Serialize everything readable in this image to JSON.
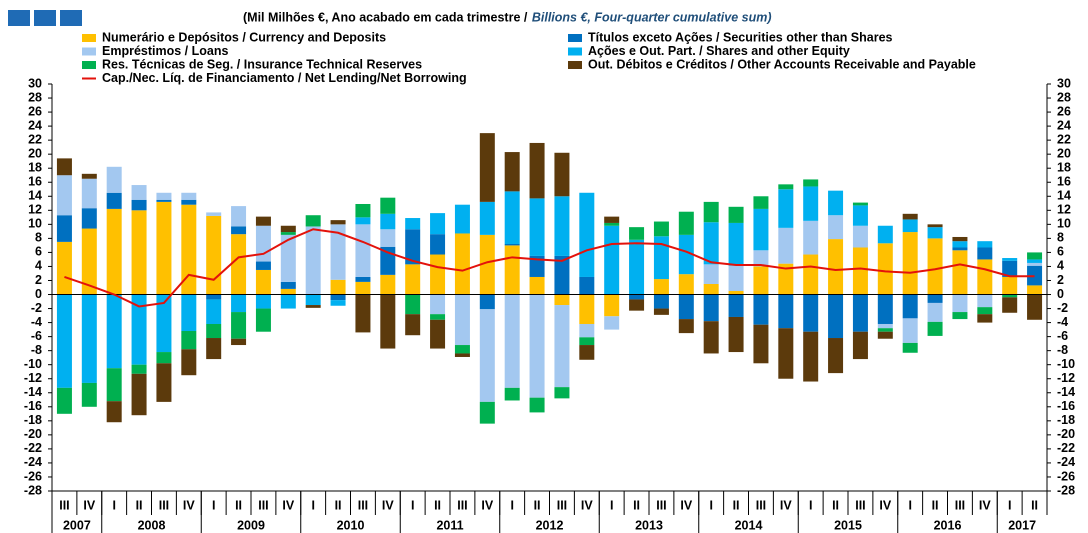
{
  "chart_data": {
    "type": "stacked-bar-line",
    "title": "(Mil Milhões €, Ano acabado em cada trimestre  /",
    "subtitle": "Billions  €, Four-quarter cumulative sum)",
    "categories": [
      "III",
      "IV",
      "I",
      "II",
      "III",
      "IV",
      "I",
      "II",
      "III",
      "IV",
      "I",
      "II",
      "III",
      "IV",
      "I",
      "II",
      "III",
      "IV",
      "I",
      "II",
      "III",
      "IV",
      "I",
      "II",
      "III",
      "IV",
      "I",
      "II",
      "III",
      "IV",
      "I",
      "II",
      "III",
      "IV",
      "I",
      "II",
      "III",
      "IV",
      "I",
      "II"
    ],
    "year_labels": [
      "2007",
      null,
      "2008",
      null,
      null,
      null,
      "2009",
      null,
      null,
      null,
      "2010",
      null,
      null,
      null,
      "2011",
      null,
      null,
      null,
      "2012",
      null,
      null,
      null,
      "2013",
      null,
      null,
      null,
      "2014",
      null,
      null,
      null,
      "2015",
      null,
      null,
      null,
      "2016",
      null,
      null,
      null,
      "2017",
      null
    ],
    "series": [
      {
        "name": "Numerário e Depósitos / Currency and Deposits",
        "color": "#FFC000",
        "values": [
          7.5,
          9.4,
          12.2,
          12,
          13.2,
          12.8,
          11.2,
          8.6,
          3.5,
          0.8,
          0,
          2.1,
          1.8,
          2.8,
          4.3,
          5.7,
          8.7,
          8.5,
          7,
          2.5,
          -1.5,
          -4.2,
          -3.1,
          0,
          2.2,
          2.9,
          1.5,
          0.5,
          4,
          4.4,
          5.7,
          7.9,
          6.7,
          7.3,
          8.9,
          8,
          6.3,
          5,
          2.5,
          1.3
        ]
      },
      {
        "name": "Títulos exceto Ações / Securities other than Shares",
        "color": "#0070C0",
        "values": [
          3.8,
          2.9,
          2.3,
          1.5,
          0.3,
          0.7,
          -0.7,
          1.1,
          1.2,
          1,
          0,
          -0.8,
          0.7,
          4,
          5,
          2.9,
          0,
          -2.1,
          0.2,
          3,
          5.5,
          2.5,
          0,
          -0.7,
          -2,
          -3.5,
          -3.8,
          -3.2,
          -4.3,
          -4.8,
          -5.3,
          -6.2,
          -5.3,
          -4.2,
          -3.4,
          -1.2,
          0.4,
          1.7,
          2.3,
          2.8
        ]
      },
      {
        "name": "Empréstimos / Loans",
        "color": "#A3C8F0",
        "values": [
          5.7,
          4.2,
          3.7,
          2.1,
          1,
          1,
          0.5,
          2.9,
          5.1,
          6.7,
          9.7,
          7.9,
          7.5,
          2.5,
          0,
          -2.8,
          -7.2,
          -13.2,
          -13.3,
          -14.7,
          -11.7,
          -1.9,
          -1.9,
          0,
          0,
          0,
          2.8,
          3.6,
          2.3,
          5.1,
          4.8,
          3.4,
          3.1,
          -0.6,
          -3.5,
          -2.7,
          -2.5,
          -1.8,
          0,
          0.4
        ]
      },
      {
        "name": "Ações e Out. Part. / Shares and other Equity",
        "color": "#00B0F0",
        "values": [
          -13.3,
          -12.6,
          -10.5,
          -10,
          -8.2,
          -5.2,
          -3.5,
          -2.5,
          -2,
          -2,
          -1.5,
          -0.8,
          1,
          2.2,
          1.6,
          3,
          4.1,
          4.7,
          7.5,
          8.2,
          8.5,
          12,
          9.8,
          7.8,
          6.1,
          5.6,
          6,
          6.1,
          5.9,
          5.5,
          4.9,
          3.5,
          2.9,
          2.5,
          1.8,
          1.6,
          0.9,
          0.9,
          0.4,
          0.5
        ]
      },
      {
        "name": "Res. Técnicas de Seg. / Insurance Technical Reserves",
        "color": "#00B050",
        "values": [
          -3.7,
          -3.4,
          -4.7,
          -1.3,
          -1.6,
          -2.6,
          -2,
          -3.8,
          -3.3,
          0.4,
          1.6,
          0,
          1.9,
          2.3,
          -2.8,
          -0.8,
          -1.2,
          -3.1,
          -1.8,
          -2.1,
          -1.6,
          -1.1,
          0.4,
          1.8,
          2.1,
          3.3,
          2.9,
          2.3,
          1.8,
          0.7,
          1,
          0,
          0.4,
          -0.5,
          -1.4,
          -2,
          -1,
          -1,
          -0.4,
          1
        ]
      },
      {
        "name": "Out. Débitos e Créditos / Other Accounts Receivable and Payable",
        "color": "#5C3A0C",
        "values": [
          2.4,
          0.7,
          -3,
          -5.9,
          -5.5,
          -3.7,
          -3,
          -0.9,
          1.3,
          0.9,
          -0.4,
          0.6,
          -5.4,
          -7.7,
          -3,
          -4.1,
          -0.5,
          9.8,
          5.6,
          7.9,
          6.2,
          -2.1,
          0.9,
          -1.6,
          -0.9,
          -2,
          -4.6,
          -5,
          -5.5,
          -7.2,
          -7.1,
          -5,
          -3.9,
          -1,
          0.8,
          0.4,
          0.6,
          -1.2,
          -2.2,
          -3.6
        ]
      }
    ],
    "line": {
      "name": "Cap./Nec. Líq. de Financiamento / Net Lending/Net Borrowing",
      "color": "#E3120B",
      "values": [
        2.5,
        1.3,
        0,
        -1.7,
        -1.2,
        2.8,
        2.1,
        5.3,
        5.8,
        7.8,
        9.3,
        8.8,
        7.5,
        6,
        4.8,
        3.9,
        3.4,
        4.6,
        5.3,
        5,
        4.8,
        6.3,
        7.2,
        7.3,
        7.2,
        6.1,
        4.6,
        4.2,
        4.2,
        3.7,
        4,
        3.5,
        3.7,
        3.3,
        3.1,
        3.6,
        4.3,
        3.6,
        2.6,
        2.6
      ]
    },
    "ylim": [
      -28,
      30
    ],
    "yticks": [
      -28,
      -26,
      -24,
      -22,
      -20,
      -18,
      -16,
      -14,
      -12,
      -10,
      -8,
      -6,
      -4,
      -2,
      0,
      2,
      4,
      6,
      8,
      10,
      12,
      14,
      16,
      18,
      20,
      22,
      24,
      26,
      28,
      30
    ],
    "grid": false
  }
}
